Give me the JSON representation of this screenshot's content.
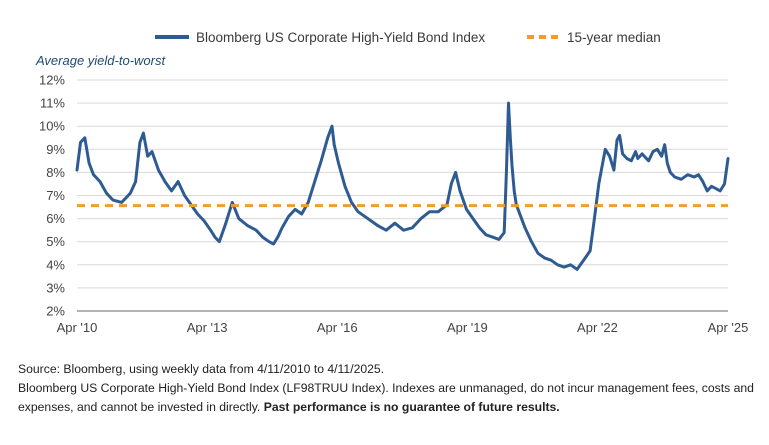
{
  "chart_data": {
    "type": "line",
    "ylabel": "Average yield-to-worst",
    "xlabel": "",
    "ylim": [
      2,
      12
    ],
    "y_ticks": [
      "12%",
      "11%",
      "10%",
      "9%",
      "8%",
      "7%",
      "6%",
      "5%",
      "4%",
      "3%",
      "2%"
    ],
    "y_tick_values": [
      12,
      11,
      10,
      9,
      8,
      7,
      6,
      5,
      4,
      3,
      2
    ],
    "xlim": [
      2010.27,
      2025.28
    ],
    "x_ticks": [
      "Apr '10",
      "Apr '13",
      "Apr '16",
      "Apr '19",
      "Apr '22",
      "Apr '25"
    ],
    "x_tick_values": [
      2010.27,
      2013.27,
      2016.27,
      2019.27,
      2022.27,
      2025.28
    ],
    "legend": {
      "placement": "top",
      "series_label": "Bloomberg US Corporate High-Yield Bond Index",
      "median_label": "15-year median"
    },
    "grid": {
      "y": true,
      "x": false
    },
    "colors": {
      "series": "#2f5b93",
      "median": "#f29c2a",
      "grid": "#d9d9d9",
      "axis": "#9a9a9a"
    },
    "series": [
      {
        "name": "Bloomberg US Corporate High-Yield Bond Index",
        "x": [
          2010.27,
          2010.35,
          2010.45,
          2010.55,
          2010.65,
          2010.8,
          2010.95,
          2011.1,
          2011.3,
          2011.5,
          2011.62,
          2011.72,
          2011.8,
          2011.9,
          2012.0,
          2012.15,
          2012.3,
          2012.45,
          2012.6,
          2012.75,
          2012.9,
          2013.05,
          2013.2,
          2013.35,
          2013.45,
          2013.55,
          2013.7,
          2013.85,
          2014.0,
          2014.2,
          2014.4,
          2014.55,
          2014.7,
          2014.8,
          2014.9,
          2015.0,
          2015.15,
          2015.3,
          2015.45,
          2015.6,
          2015.75,
          2015.9,
          2016.05,
          2016.15,
          2016.2,
          2016.3,
          2016.45,
          2016.6,
          2016.75,
          2016.9,
          2017.05,
          2017.2,
          2017.4,
          2017.6,
          2017.8,
          2018.0,
          2018.2,
          2018.4,
          2018.6,
          2018.8,
          2018.9,
          2019.0,
          2019.1,
          2019.25,
          2019.4,
          2019.55,
          2019.7,
          2019.85,
          2020.0,
          2020.12,
          2020.17,
          2020.22,
          2020.26,
          2020.3,
          2020.35,
          2020.4,
          2020.5,
          2020.6,
          2020.75,
          2020.9,
          2021.05,
          2021.2,
          2021.35,
          2021.5,
          2021.65,
          2021.8,
          2021.95,
          2022.1,
          2022.2,
          2022.3,
          2022.4,
          2022.45,
          2022.55,
          2022.65,
          2022.72,
          2022.78,
          2022.85,
          2022.95,
          2023.05,
          2023.15,
          2023.2,
          2023.3,
          2023.45,
          2023.55,
          2023.65,
          2023.75,
          2023.82,
          2023.88,
          2023.95,
          2024.05,
          2024.2,
          2024.35,
          2024.5,
          2024.6,
          2024.7,
          2024.8,
          2024.9,
          2025.0,
          2025.1,
          2025.2,
          2025.28
        ],
        "values": [
          8.1,
          9.3,
          9.5,
          8.4,
          7.9,
          7.6,
          7.1,
          6.8,
          6.7,
          7.1,
          7.6,
          9.3,
          9.7,
          8.7,
          8.9,
          8.1,
          7.6,
          7.2,
          7.6,
          7.0,
          6.6,
          6.2,
          5.9,
          5.5,
          5.2,
          5.0,
          5.8,
          6.7,
          6.0,
          5.7,
          5.5,
          5.2,
          5.0,
          4.9,
          5.2,
          5.6,
          6.1,
          6.4,
          6.2,
          6.7,
          7.6,
          8.5,
          9.5,
          10.0,
          9.2,
          8.4,
          7.4,
          6.7,
          6.3,
          6.1,
          5.9,
          5.7,
          5.5,
          5.8,
          5.5,
          5.6,
          6.0,
          6.3,
          6.3,
          6.6,
          7.5,
          8.0,
          7.2,
          6.4,
          6.0,
          5.6,
          5.3,
          5.2,
          5.1,
          5.4,
          8.0,
          11.0,
          9.5,
          8.3,
          7.2,
          6.6,
          6.1,
          5.6,
          5.0,
          4.5,
          4.3,
          4.2,
          4.0,
          3.9,
          4.0,
          3.8,
          4.2,
          4.6,
          6.0,
          7.5,
          8.5,
          9.0,
          8.7,
          8.1,
          9.4,
          9.6,
          8.8,
          8.6,
          8.5,
          8.9,
          8.6,
          8.8,
          8.5,
          8.9,
          9.0,
          8.7,
          9.2,
          8.4,
          8.0,
          7.8,
          7.7,
          7.9,
          7.8,
          7.9,
          7.6,
          7.2,
          7.4,
          7.3,
          7.2,
          7.5,
          8.6
        ]
      },
      {
        "name": "15-year median",
        "values": [
          6.56
        ]
      }
    ]
  },
  "notes": {
    "source": "Source: Bloomberg, using weekly data from 4/11/2010 to 4/11/2025.",
    "disclaimer": "Bloomberg US Corporate High-Yield Bond Index (LF98TRUU Index). Indexes are unmanaged, do not incur management fees, costs and expenses, and cannot be invested in directly.",
    "disclaimer_bold": "Past performance is no guarantee of future results."
  }
}
